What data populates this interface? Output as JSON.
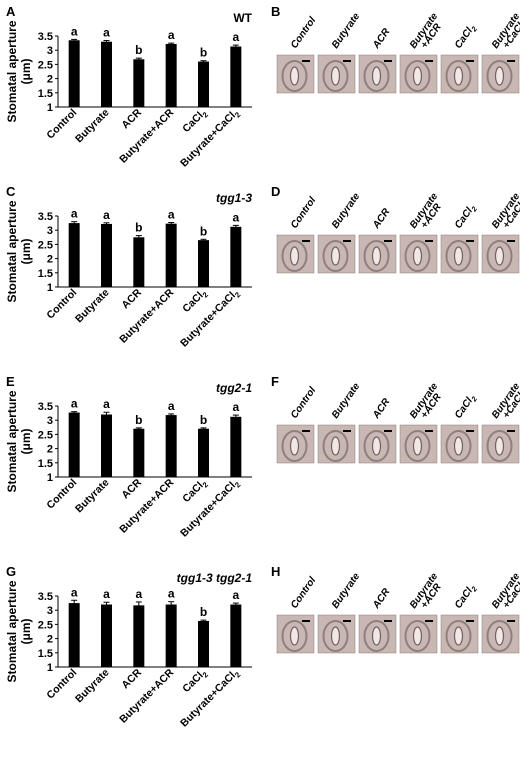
{
  "y_axis_label": "Stomatal aperture",
  "y_axis_unit": "(μm)",
  "chart_data": [
    {
      "panel": "A",
      "genotype": "WT",
      "genotype_italic": false,
      "type": "bar",
      "categories": [
        "Control",
        "Butyrate",
        "ACR",
        "Butyrate+ACR",
        "CaCl2",
        "Butyrate+CaCl2"
      ],
      "values": [
        3.35,
        3.3,
        2.68,
        3.22,
        2.6,
        3.13
      ],
      "errors": [
        0.03,
        0.04,
        0.04,
        0.03,
        0.03,
        0.05
      ],
      "significance": [
        "a",
        "a",
        "b",
        "a",
        "b",
        "a"
      ],
      "ylim": [
        1,
        3.5
      ],
      "yticks": [
        "1",
        "1.5",
        "2",
        "2.5",
        "3",
        "3.5"
      ]
    },
    {
      "panel": "C",
      "genotype": "tgg1-3",
      "genotype_italic": true,
      "type": "bar",
      "categories": [
        "Control",
        "Butyrate",
        "ACR",
        "Butyrate+ACR",
        "CaCl2",
        "Butyrate+CaCl2"
      ],
      "values": [
        3.25,
        3.22,
        2.75,
        3.23,
        2.65,
        3.12
      ],
      "errors": [
        0.05,
        0.04,
        0.06,
        0.04,
        0.03,
        0.05
      ],
      "significance": [
        "a",
        "a",
        "b",
        "a",
        "b",
        "a"
      ],
      "ylim": [
        1,
        3.5
      ],
      "yticks": [
        "1",
        "1.5",
        "2",
        "2.5",
        "3",
        "3.5"
      ]
    },
    {
      "panel": "E",
      "genotype": "tgg2-1",
      "genotype_italic": true,
      "type": "bar",
      "categories": [
        "Control",
        "Butyrate",
        "ACR",
        "Butyrate+ACR",
        "CaCl2",
        "Butyrate+CaCl2"
      ],
      "values": [
        3.27,
        3.2,
        2.7,
        3.18,
        2.7,
        3.12
      ],
      "errors": [
        0.03,
        0.08,
        0.03,
        0.04,
        0.03,
        0.06
      ],
      "significance": [
        "a",
        "a",
        "b",
        "a",
        "b",
        "a"
      ],
      "ylim": [
        1,
        3.5
      ],
      "yticks": [
        "1",
        "1.5",
        "2",
        "2.5",
        "3",
        "3.5"
      ]
    },
    {
      "panel": "G",
      "genotype": "tgg1-3 tgg2-1",
      "genotype_italic": true,
      "type": "bar",
      "categories": [
        "Control",
        "Butyrate",
        "ACR",
        "Butyrate+ACR",
        "CaCl2",
        "Butyrate+CaCl2"
      ],
      "values": [
        3.25,
        3.2,
        3.17,
        3.2,
        2.62,
        3.2
      ],
      "errors": [
        0.1,
        0.08,
        0.12,
        0.1,
        0.03,
        0.05
      ],
      "significance": [
        "a",
        "a",
        "a",
        "a",
        "b",
        "a"
      ],
      "ylim": [
        1,
        3.5
      ],
      "yticks": [
        "1",
        "1.5",
        "2",
        "2.5",
        "3",
        "3.5"
      ]
    }
  ],
  "photo_panels": [
    {
      "panel": "B",
      "labels": [
        "Control",
        "Butyrate",
        "ACR",
        "Butyrate +ACR",
        "CaCl2",
        "Butyrate +CaCl2"
      ]
    },
    {
      "panel": "D",
      "labels": [
        "Control",
        "Butyrate",
        "ACR",
        "Butyrate +ACR",
        "CaCl2",
        "Butyrate +CaCl2"
      ]
    },
    {
      "panel": "F",
      "labels": [
        "Control",
        "Butyrate",
        "ACR",
        "Butyrate +ACR",
        "CaCl2",
        "Butyrate +CaCl2"
      ]
    },
    {
      "panel": "H",
      "labels": [
        "Control",
        "Butyrate",
        "ACR",
        "Butyrate +ACR",
        "CaCl2",
        "Butyrate +CaCl2"
      ]
    }
  ],
  "colors": {
    "bar": "#000000",
    "photo_bg": "#c9b7b4",
    "stoma": "#8f7f7d"
  }
}
